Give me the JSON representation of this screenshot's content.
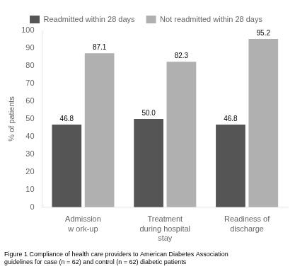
{
  "chart_data": {
    "type": "bar",
    "categories": [
      "Admission\nw ork-up",
      "Treatment\nduring hospital\nstay",
      "Readiness of\ndischarge"
    ],
    "series": [
      {
        "name": "Readmitted within 28 days",
        "color": "#555555",
        "values": [
          46.8,
          50.0,
          46.8
        ],
        "value_labels": [
          "46.8",
          "50.0",
          "46.8"
        ]
      },
      {
        "name": "Not readmitted within 28 days",
        "color": "#b0b0b0",
        "values": [
          87.1,
          82.3,
          95.2
        ]
      }
    ],
    "ylabel": "% of patients",
    "ylim": [
      0,
      100
    ],
    "yticks": [
      0,
      10,
      20,
      30,
      40,
      50,
      60,
      70,
      80,
      90,
      100
    ],
    "grid": false,
    "data_labels": true,
    "legend": "top",
    "caption": [
      "Figure 1 Compliance of health care providers to American Diabetes Association",
      "guidelines for case (n = 62) and control (n = 62) diabetic patients"
    ]
  }
}
